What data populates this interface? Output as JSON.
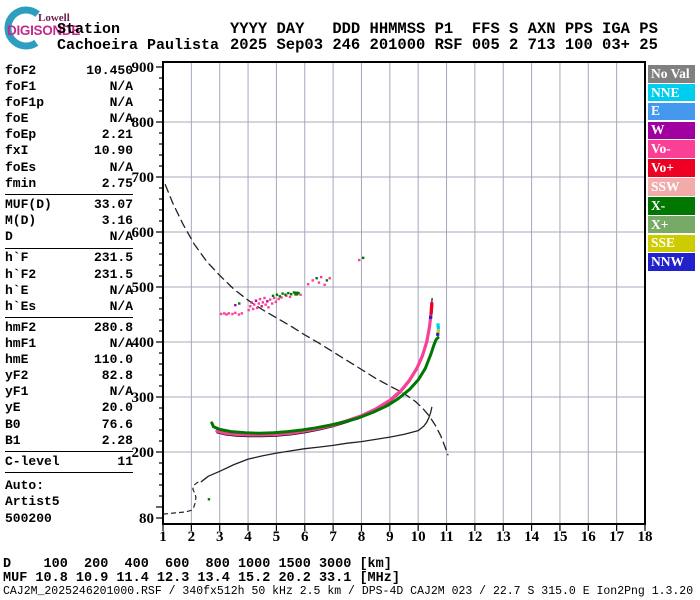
{
  "header": {
    "logo": {
      "line1": "Lowell",
      "line2": "DIGISONDE"
    },
    "station_label": "Station",
    "station_name": "Cachoeira Paulista",
    "columns_line": "YYYY DAY   DDD HHMMSS P1  FFS S AXN PPS IGA PS",
    "values_line": "2025 Sep03 246 201000 RSF 005 2 713 100 03+ 25"
  },
  "params": {
    "groups": [
      {
        "rows": [
          [
            "foF2",
            "10.450"
          ],
          [
            "foF1",
            "N/A"
          ],
          [
            "foF1p",
            "N/A"
          ],
          [
            "foE",
            "N/A"
          ],
          [
            "foEp",
            "2.21"
          ],
          [
            "fxI",
            "10.90"
          ],
          [
            "foEs",
            "N/A"
          ],
          [
            "fmin",
            "2.75"
          ]
        ]
      },
      {
        "rows": [
          [
            "MUF(D)",
            "33.07"
          ],
          [
            "M(D)",
            "3.16"
          ],
          [
            "D",
            "N/A"
          ]
        ]
      },
      {
        "rows": [
          [
            "h`F",
            "231.5"
          ],
          [
            "h`F2",
            "231.5"
          ],
          [
            "h`E",
            "N/A"
          ],
          [
            "h`Es",
            "N/A"
          ]
        ]
      },
      {
        "rows": [
          [
            "hmF2",
            "280.8"
          ],
          [
            "hmF1",
            "N/A"
          ],
          [
            "hmE",
            "110.0"
          ],
          [
            "yF2",
            "82.8"
          ],
          [
            "yF1",
            "N/A"
          ],
          [
            "yE",
            "20.0"
          ],
          [
            "B0",
            "76.6"
          ],
          [
            "B1",
            "2.28"
          ]
        ]
      },
      {
        "rows": [
          [
            "C-level",
            "11"
          ]
        ]
      }
    ],
    "footer_lines": [
      "Auto:",
      "Artist5",
      "500200"
    ]
  },
  "legend": [
    {
      "label": "No Val",
      "color": "#808080"
    },
    {
      "label": "NNE",
      "color": "#00CCEE"
    },
    {
      "label": "E",
      "color": "#4499EE"
    },
    {
      "label": "W",
      "color": "#A000A0"
    },
    {
      "label": "Vo-",
      "color": "#F93F96"
    },
    {
      "label": "Vo+",
      "color": "#EE0022"
    },
    {
      "label": "SSW",
      "color": "#F2ABAB"
    },
    {
      "label": "X-",
      "color": "#007700"
    },
    {
      "label": "X+",
      "color": "#77AA66"
    },
    {
      "label": "SSE",
      "color": "#CCCC00"
    },
    {
      "label": "NNW",
      "color": "#2222CC"
    }
  ],
  "bottom": {
    "d_row": "D    100  200  400  600  800 1000 1500 3000 [km]",
    "muf_row": "MUF 10.8 10.9 11.4 12.3 13.4 15.2 20.2 33.1 [MHz]",
    "info_row": "CAJ2M_2025246201000.RSF / 340fx512h 50 kHz 2.5 km / DPS-4D CAJ2M 023 / 22.7 S 315.0 E Ion2Png 1.3.20"
  },
  "chart_data": {
    "type": "ionogram (line + scatter)",
    "x_unit": "MHz",
    "y_unit": "km",
    "xlim": [
      1,
      18
    ],
    "ylim": [
      80,
      900
    ],
    "x_tick_labels": [
      1,
      2,
      3,
      4,
      5,
      6,
      7,
      8,
      9,
      10,
      11,
      12,
      13,
      14,
      15,
      16,
      17,
      18
    ],
    "y_tick_labels": [
      900,
      800,
      700,
      600,
      500,
      400,
      300,
      200,
      80
    ],
    "y_gridlines": [
      200,
      300,
      400,
      500,
      600,
      700,
      800
    ],
    "grid": true,
    "legend_position": "right",
    "series": [
      {
        "name": "muf-transmission-curve",
        "color": "#222222",
        "width": 1.3,
        "dash": "8 5",
        "points": [
          [
            1.08,
            686
          ],
          [
            1.35,
            652
          ],
          [
            1.7,
            615
          ],
          [
            2.1,
            578
          ],
          [
            2.55,
            546
          ],
          [
            3.0,
            521
          ],
          [
            3.5,
            496
          ],
          [
            4.0,
            476
          ],
          [
            4.5,
            459
          ],
          [
            5.0,
            444
          ],
          [
            5.5,
            429
          ],
          [
            6.0,
            413
          ],
          [
            6.5,
            398
          ],
          [
            7.0,
            382
          ],
          [
            7.5,
            366
          ],
          [
            8.0,
            350
          ],
          [
            8.5,
            334
          ],
          [
            9.0,
            320
          ],
          [
            9.3,
            312
          ],
          [
            9.6,
            303
          ],
          [
            9.9,
            292
          ],
          [
            10.15,
            280
          ],
          [
            10.4,
            265
          ],
          [
            10.6,
            249
          ],
          [
            10.8,
            229
          ],
          [
            10.95,
            209
          ],
          [
            11.05,
            195
          ]
        ]
      },
      {
        "name": "profile-dashed-start",
        "color": "#222222",
        "width": 1.2,
        "dash": "4 4",
        "points": [
          [
            1.02,
            87
          ],
          [
            1.4,
            89
          ],
          [
            1.8,
            91
          ],
          [
            2.0,
            94
          ],
          [
            2.08,
            99
          ],
          [
            2.14,
            108
          ],
          [
            2.16,
            118
          ],
          [
            2.1,
            127
          ],
          [
            2.05,
            133
          ],
          [
            2.1,
            140
          ],
          [
            2.22,
            145
          ],
          [
            2.35,
            146
          ]
        ]
      },
      {
        "name": "true-height-profile",
        "color": "#222222",
        "width": 1.3,
        "dash": null,
        "points": [
          [
            2.35,
            146
          ],
          [
            2.6,
            156
          ],
          [
            3.0,
            165
          ],
          [
            3.5,
            177
          ],
          [
            4.0,
            187
          ],
          [
            4.5,
            193
          ],
          [
            5.0,
            198
          ],
          [
            5.5,
            202
          ],
          [
            6.0,
            206
          ],
          [
            6.5,
            209
          ],
          [
            7.0,
            212
          ],
          [
            7.5,
            216
          ],
          [
            8.0,
            219
          ],
          [
            8.5,
            223
          ],
          [
            9.0,
            227
          ],
          [
            9.5,
            232
          ],
          [
            10.0,
            239
          ],
          [
            10.2,
            247
          ],
          [
            10.3,
            254
          ],
          [
            10.38,
            263
          ],
          [
            10.44,
            272
          ],
          [
            10.48,
            281
          ]
        ]
      },
      {
        "name": "o-trace-fit-line",
        "color": "#111111",
        "width": 1.2,
        "dash": null,
        "points": [
          [
            2.9,
            235
          ],
          [
            3.2,
            231
          ],
          [
            3.6,
            229
          ],
          [
            4.0,
            228
          ],
          [
            4.5,
            228
          ],
          [
            5.0,
            229
          ],
          [
            5.5,
            231
          ],
          [
            6.0,
            235
          ],
          [
            6.5,
            240
          ],
          [
            7.0,
            246
          ],
          [
            7.5,
            254
          ],
          [
            8.0,
            263
          ],
          [
            8.5,
            275
          ],
          [
            9.0,
            291
          ],
          [
            9.4,
            309
          ],
          [
            9.7,
            328
          ],
          [
            9.95,
            349
          ],
          [
            10.15,
            372
          ],
          [
            10.3,
            398
          ],
          [
            10.4,
            426
          ],
          [
            10.45,
            450
          ],
          [
            10.48,
            472
          ],
          [
            10.49,
            479
          ]
        ]
      },
      {
        "name": "o-trace",
        "color": "#F93F96",
        "width": 3.2,
        "dash": null,
        "points": [
          [
            2.9,
            238
          ],
          [
            3.2,
            234
          ],
          [
            3.6,
            232
          ],
          [
            4.0,
            231
          ],
          [
            4.5,
            231
          ],
          [
            5.0,
            232
          ],
          [
            5.5,
            234
          ],
          [
            6.0,
            238
          ],
          [
            6.5,
            243
          ],
          [
            7.0,
            249
          ],
          [
            7.5,
            257
          ],
          [
            8.0,
            266
          ],
          [
            8.5,
            278
          ],
          [
            9.0,
            294
          ],
          [
            9.4,
            312
          ],
          [
            9.7,
            331
          ],
          [
            9.95,
            352
          ],
          [
            10.15,
            375
          ],
          [
            10.3,
            400
          ],
          [
            10.4,
            427
          ],
          [
            10.45,
            450
          ],
          [
            10.48,
            470
          ]
        ]
      },
      {
        "name": "o-trace-red-tip",
        "color": "#EE0022",
        "width": 3.2,
        "dash": null,
        "points": [
          [
            10.46,
            452
          ],
          [
            10.475,
            462
          ],
          [
            10.48,
            470
          ]
        ]
      },
      {
        "name": "x-trace",
        "color": "#007700",
        "width": 3.0,
        "dash": null,
        "points": [
          [
            2.72,
            253
          ],
          [
            2.78,
            246
          ],
          [
            3.0,
            241
          ],
          [
            3.4,
            237
          ],
          [
            3.9,
            235
          ],
          [
            4.4,
            234
          ],
          [
            4.9,
            235
          ],
          [
            5.4,
            237
          ],
          [
            5.9,
            240
          ],
          [
            6.4,
            244
          ],
          [
            6.9,
            249
          ],
          [
            7.4,
            255
          ],
          [
            7.9,
            262
          ],
          [
            8.4,
            272
          ],
          [
            8.9,
            284
          ],
          [
            9.3,
            297
          ],
          [
            9.7,
            314
          ],
          [
            10.0,
            331
          ],
          [
            10.25,
            352
          ],
          [
            10.45,
            378
          ],
          [
            10.55,
            394
          ],
          [
            10.63,
            404
          ],
          [
            10.7,
            408
          ]
        ]
      }
    ],
    "scatter_colors": {
      "P": "#F93F96",
      "G": "#007700",
      "M": "#AA00AA",
      "R": "#CC2266"
    },
    "scatter": [
      [
        2.62,
        114,
        "G"
      ],
      [
        3.05,
        451,
        "P"
      ],
      [
        3.16,
        452,
        "P"
      ],
      [
        3.24,
        450,
        "P"
      ],
      [
        3.32,
        452,
        "P"
      ],
      [
        3.45,
        451,
        "P"
      ],
      [
        3.55,
        453,
        "P"
      ],
      [
        3.68,
        450,
        "P"
      ],
      [
        3.78,
        452,
        "P"
      ],
      [
        3.55,
        467,
        "M"
      ],
      [
        3.69,
        470,
        "G"
      ],
      [
        4.02,
        458,
        "P"
      ],
      [
        4.08,
        465,
        "P"
      ],
      [
        4.12,
        472,
        "R"
      ],
      [
        4.18,
        460,
        "P"
      ],
      [
        4.22,
        468,
        "P"
      ],
      [
        4.28,
        475,
        "M"
      ],
      [
        4.32,
        462,
        "P"
      ],
      [
        4.38,
        470,
        "P"
      ],
      [
        4.42,
        478,
        "P"
      ],
      [
        4.48,
        465,
        "R"
      ],
      [
        4.52,
        472,
        "P"
      ],
      [
        4.58,
        480,
        "P"
      ],
      [
        4.62,
        468,
        "P"
      ],
      [
        4.68,
        474,
        "M"
      ],
      [
        4.72,
        463,
        "P"
      ],
      [
        4.78,
        477,
        "P"
      ],
      [
        4.85,
        470,
        "P"
      ],
      [
        4.92,
        480,
        "P"
      ],
      [
        4.98,
        473,
        "P"
      ],
      [
        5.08,
        478,
        "P"
      ],
      [
        5.18,
        481,
        "P"
      ],
      [
        5.35,
        484,
        "P"
      ],
      [
        5.48,
        482,
        "P"
      ],
      [
        5.85,
        486,
        "P"
      ],
      [
        4.88,
        484,
        "G"
      ],
      [
        5.02,
        486,
        "G"
      ],
      [
        5.12,
        483,
        "G"
      ],
      [
        5.22,
        488,
        "G"
      ],
      [
        5.32,
        486,
        "G"
      ],
      [
        5.42,
        489,
        "G"
      ],
      [
        5.52,
        487,
        "G"
      ],
      [
        5.62,
        490,
        "G"
      ],
      [
        5.7,
        488,
        "G",
        4
      ],
      [
        5.78,
        489,
        "G"
      ],
      [
        6.12,
        505,
        "P"
      ],
      [
        6.28,
        512,
        "P"
      ],
      [
        6.42,
        516,
        "G"
      ],
      [
        6.5,
        508,
        "P"
      ],
      [
        6.58,
        518,
        "P"
      ],
      [
        6.7,
        504,
        "P"
      ],
      [
        6.78,
        512,
        "G"
      ],
      [
        6.88,
        516,
        "P"
      ],
      [
        7.92,
        549,
        "P"
      ],
      [
        8.06,
        553,
        "G"
      ]
    ],
    "tip_dots": [
      [
        10.44,
        445,
        "#2222CC"
      ],
      [
        10.69,
        414,
        "#2222CC"
      ],
      [
        10.71,
        420,
        "#CCCC00"
      ],
      [
        10.71,
        426,
        "#00CCEE"
      ],
      [
        10.7,
        431,
        "#00CCEE"
      ]
    ]
  }
}
